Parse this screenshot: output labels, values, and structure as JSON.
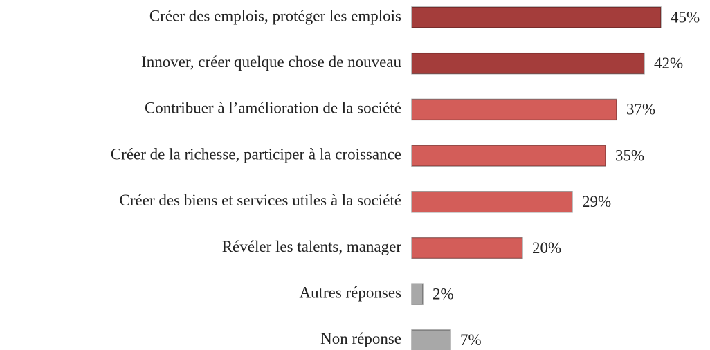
{
  "chart_data": {
    "type": "bar",
    "orientation": "horizontal",
    "categories": [
      "Créer des emplois, protéger les emplois",
      "Innover, créer quelque chose de nouveau",
      "Contribuer à l’amélioration de la société",
      "Créer de la richesse, participer à la croissance",
      "Créer des biens et services utiles à la société",
      "Révéler les talents, manager",
      "Autres réponses",
      "Non réponse"
    ],
    "values": [
      45,
      42,
      37,
      35,
      29,
      20,
      2,
      7
    ],
    "value_labels": [
      "45%",
      "42%",
      "37%",
      "35%",
      "29%",
      "20%",
      "2%",
      "7%"
    ],
    "colors": [
      "#a43d3b",
      "#a43d3b",
      "#d35d59",
      "#d35d59",
      "#d35d59",
      "#d35d59",
      "#a8a8a8",
      "#a8a8a8"
    ]
  }
}
